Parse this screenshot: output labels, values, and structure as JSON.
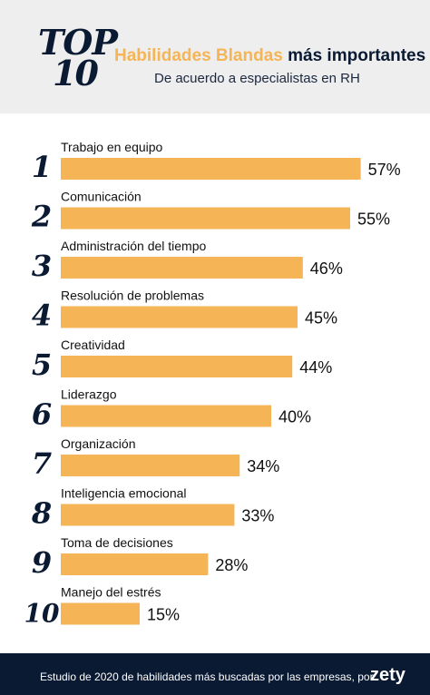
{
  "header": {
    "top_word": "TOP",
    "ten_word": "10",
    "title_highlight": "Habilidades Blandas",
    "title_rest": " más importantes",
    "subtitle": "De acuerdo a especialistas en RH"
  },
  "colors": {
    "bar": "#f5b455",
    "dark_navy": "#0b1a33",
    "header_bg": "#eeeeee"
  },
  "chart_data": {
    "type": "bar",
    "orientation": "horizontal",
    "ranks": [
      "1",
      "2",
      "3",
      "4",
      "5",
      "6",
      "7",
      "8",
      "9",
      "10"
    ],
    "categories": [
      "Trabajo en equipo",
      "Comunicación",
      "Administración del tiempo",
      "Resolución de problemas",
      "Creatividad",
      "Liderazgo",
      "Organización",
      "Inteligencia emocional",
      "Toma de decisiones",
      "Manejo del estrés"
    ],
    "values": [
      57,
      55,
      46,
      45,
      44,
      40,
      34,
      33,
      28,
      15
    ],
    "value_labels": [
      "57%",
      "55%",
      "46%",
      "45%",
      "44%",
      "40%",
      "34%",
      "33%",
      "28%",
      "15%"
    ],
    "xlim": [
      0,
      100
    ],
    "grid": false,
    "legend": "none"
  },
  "footer": {
    "text": "Estudio de 2020 de habilidades más buscadas por las empresas, por",
    "logo": "zety"
  }
}
